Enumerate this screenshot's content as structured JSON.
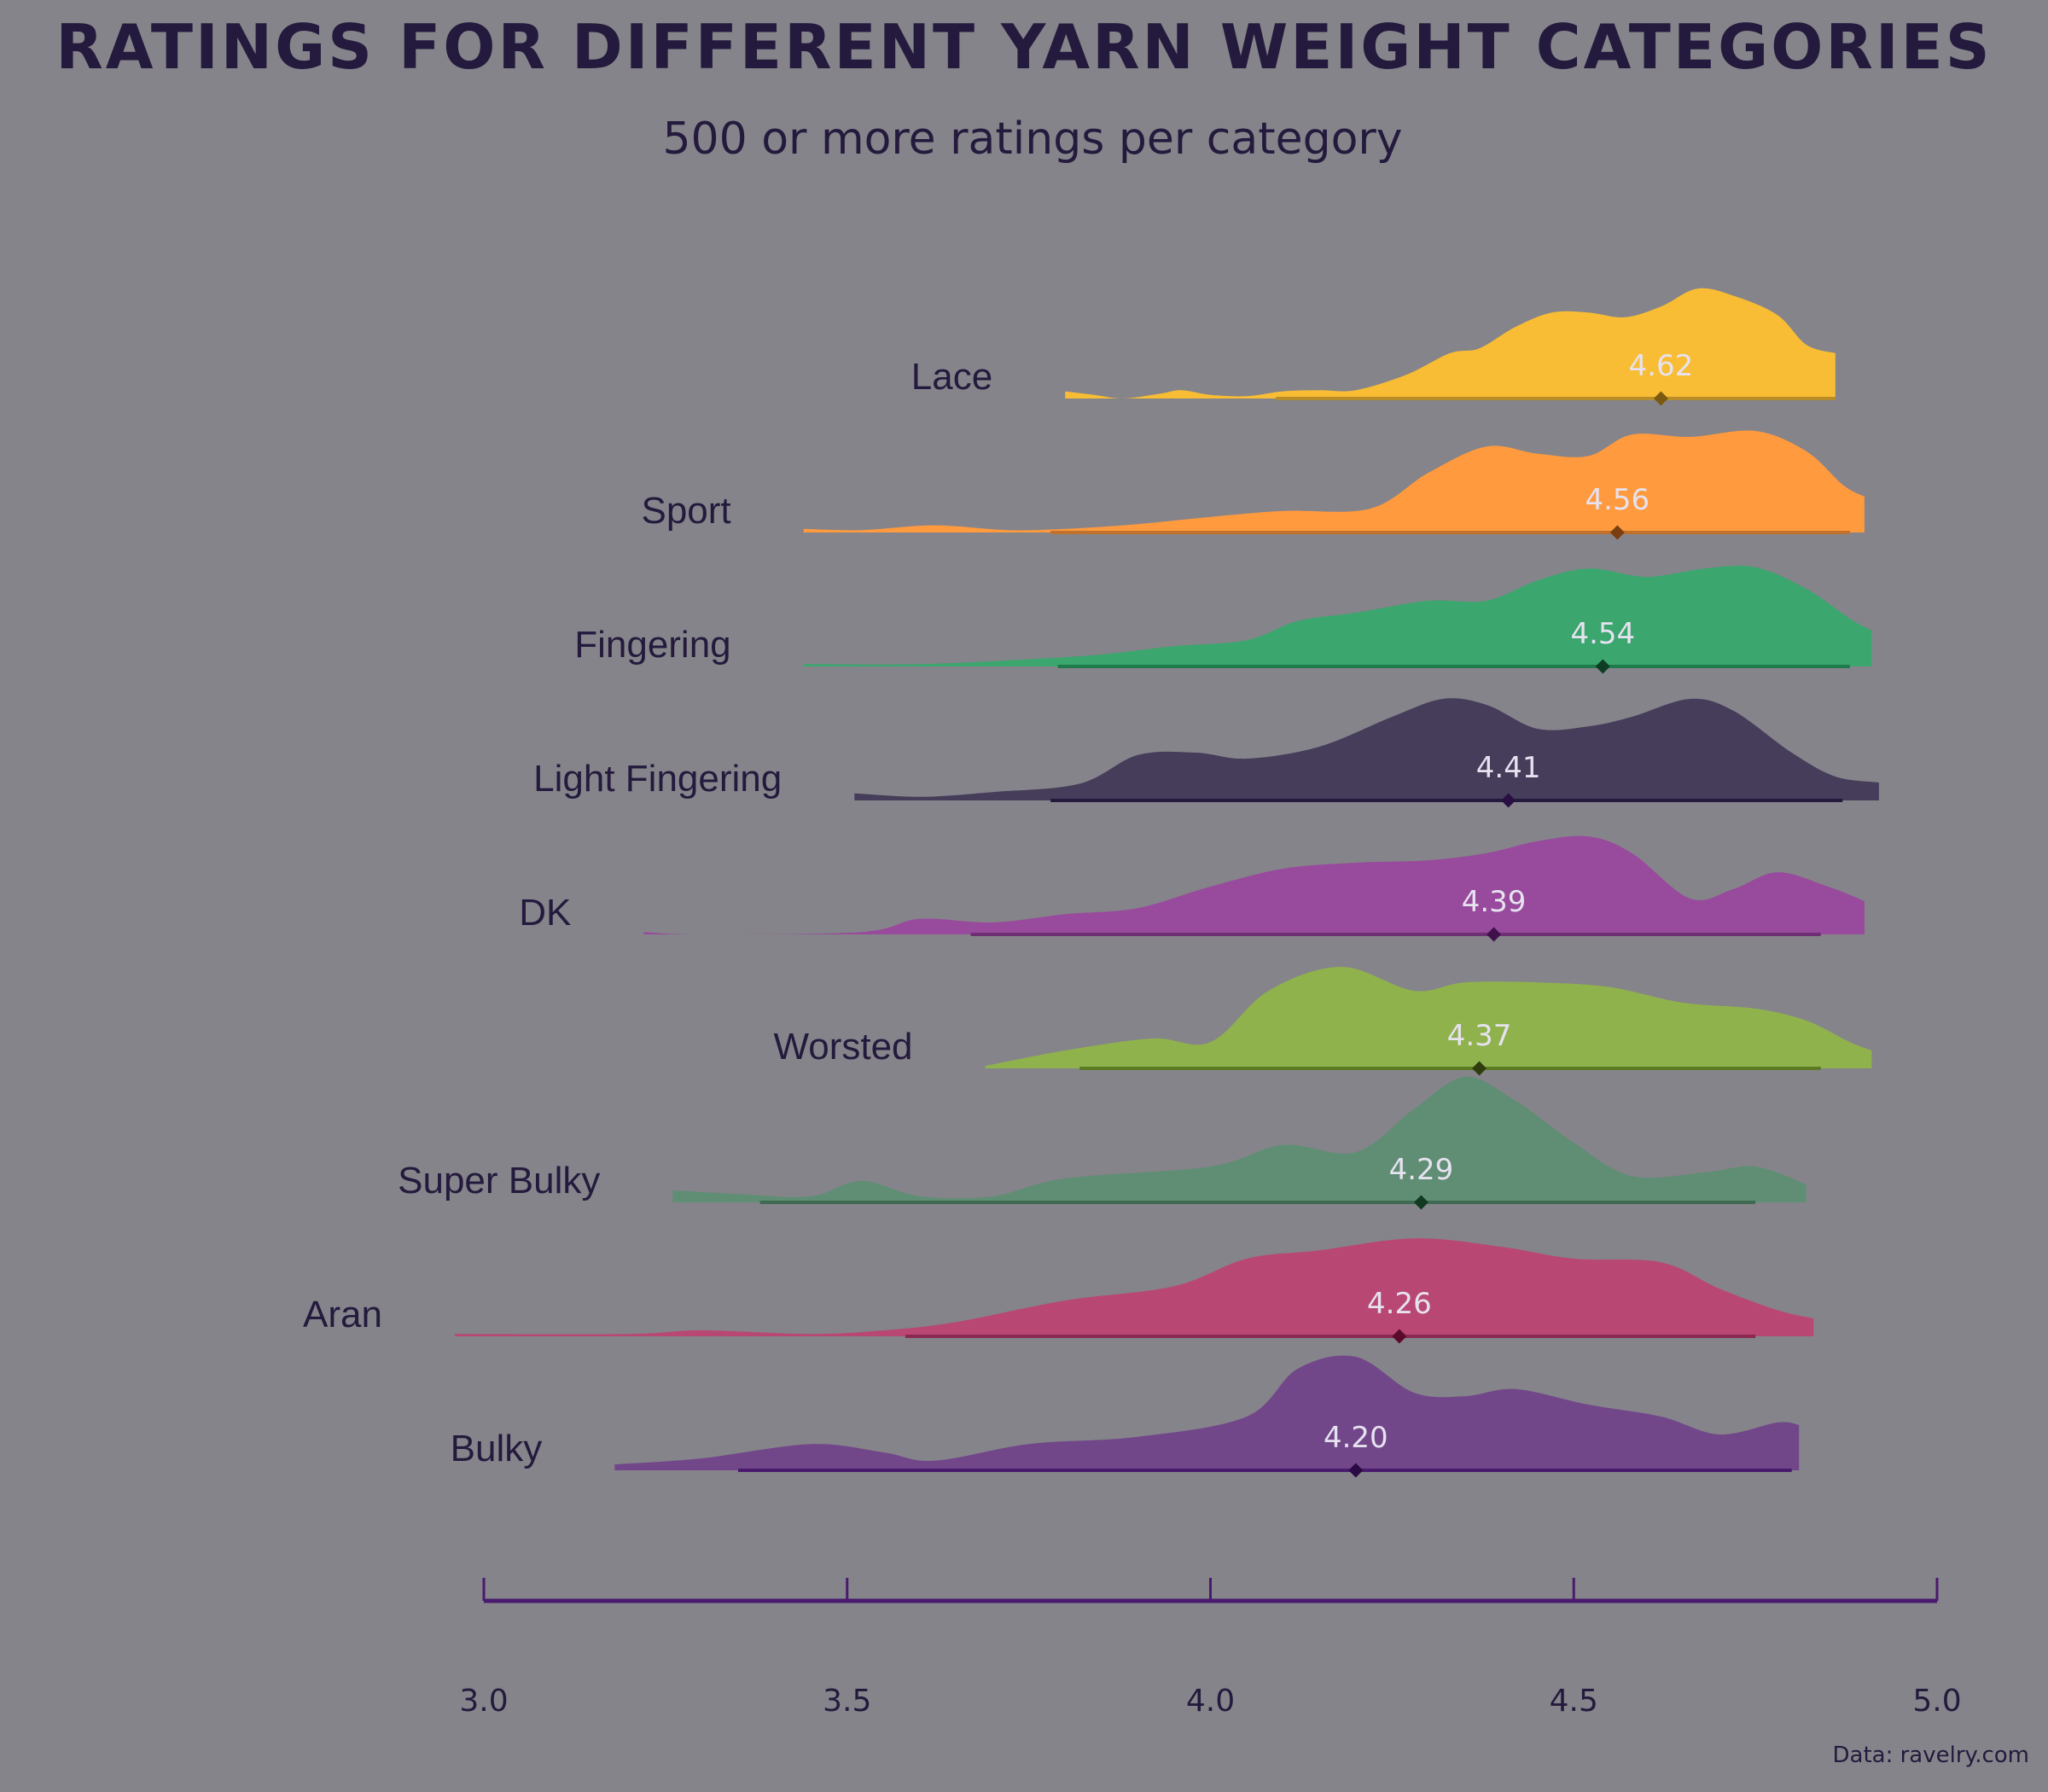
{
  "chart_data": {
    "type": "ridgeline",
    "title": "RATINGS FOR DIFFERENT YARN WEIGHT CATEGORIES",
    "subtitle": "500 or more ratings per category",
    "caption": "Data: ravelry.com",
    "xlim": [
      3.0,
      5.0
    ],
    "x_ticks": [
      "3.0",
      "3.5",
      "4.0",
      "4.5",
      "5.0"
    ],
    "x_tick_values": [
      3.0,
      3.5,
      4.0,
      4.5,
      5.0
    ],
    "grid": false,
    "colors": {
      "background": "#85848a",
      "text": "#241a3d",
      "axis": "#4a1a6e",
      "mean_label": "#e6e2f0"
    },
    "series": [
      {
        "name": "Lace",
        "mean": 4.62,
        "mean_label": "4.62",
        "range": [
          3.8,
          4.86
        ],
        "interval": [
          4.09,
          4.86
        ],
        "fill": "#f8bd34",
        "line": "#b98c2a",
        "dot": "#7a5a10",
        "density": [
          [
            3.8,
            0.06
          ],
          [
            3.84,
            0.03
          ],
          [
            3.88,
            0.0
          ],
          [
            3.93,
            0.04
          ],
          [
            3.96,
            0.07
          ],
          [
            4.0,
            0.03
          ],
          [
            4.05,
            0.02
          ],
          [
            4.1,
            0.06
          ],
          [
            4.15,
            0.07
          ],
          [
            4.2,
            0.07
          ],
          [
            4.27,
            0.2
          ],
          [
            4.33,
            0.38
          ],
          [
            4.37,
            0.42
          ],
          [
            4.42,
            0.6
          ],
          [
            4.47,
            0.72
          ],
          [
            4.52,
            0.72
          ],
          [
            4.57,
            0.68
          ],
          [
            4.62,
            0.77
          ],
          [
            4.67,
            0.92
          ],
          [
            4.72,
            0.86
          ],
          [
            4.78,
            0.7
          ],
          [
            4.82,
            0.45
          ],
          [
            4.86,
            0.38
          ]
        ]
      },
      {
        "name": "Sport",
        "mean": 4.56,
        "mean_label": "4.56",
        "range": [
          3.44,
          4.9
        ],
        "interval": [
          3.78,
          4.88
        ],
        "fill": "#ff9a3e",
        "line": "#c0712b",
        "dot": "#7a3e10",
        "density": [
          [
            3.44,
            0.03
          ],
          [
            3.52,
            0.02
          ],
          [
            3.62,
            0.06
          ],
          [
            3.72,
            0.02
          ],
          [
            3.8,
            0.03
          ],
          [
            3.9,
            0.07
          ],
          [
            4.0,
            0.13
          ],
          [
            4.1,
            0.18
          ],
          [
            4.22,
            0.2
          ],
          [
            4.3,
            0.5
          ],
          [
            4.38,
            0.72
          ],
          [
            4.45,
            0.66
          ],
          [
            4.52,
            0.64
          ],
          [
            4.58,
            0.82
          ],
          [
            4.66,
            0.8
          ],
          [
            4.75,
            0.85
          ],
          [
            4.82,
            0.68
          ],
          [
            4.87,
            0.4
          ],
          [
            4.9,
            0.3
          ]
        ]
      },
      {
        "name": "Fingering",
        "mean": 4.54,
        "mean_label": "4.54",
        "range": [
          3.44,
          4.91
        ],
        "interval": [
          3.79,
          4.88
        ],
        "fill": "#3ba66e",
        "line": "#1f7a4c",
        "dot": "#0e3d24",
        "density": [
          [
            3.44,
            0.02
          ],
          [
            3.6,
            0.02
          ],
          [
            3.75,
            0.06
          ],
          [
            3.85,
            0.1
          ],
          [
            3.95,
            0.17
          ],
          [
            4.05,
            0.22
          ],
          [
            4.12,
            0.38
          ],
          [
            4.2,
            0.45
          ],
          [
            4.3,
            0.55
          ],
          [
            4.38,
            0.55
          ],
          [
            4.45,
            0.72
          ],
          [
            4.52,
            0.82
          ],
          [
            4.6,
            0.75
          ],
          [
            4.68,
            0.82
          ],
          [
            4.75,
            0.83
          ],
          [
            4.82,
            0.65
          ],
          [
            4.88,
            0.4
          ],
          [
            4.91,
            0.3
          ]
        ]
      },
      {
        "name": "Light Fingering",
        "mean": 4.41,
        "mean_label": "4.41",
        "range": [
          3.51,
          4.92
        ],
        "interval": [
          3.78,
          4.87
        ],
        "fill": "#463d5a",
        "line": "#241a3d",
        "dot": "#2a0f45",
        "density": [
          [
            3.51,
            0.06
          ],
          [
            3.6,
            0.03
          ],
          [
            3.7,
            0.07
          ],
          [
            3.82,
            0.14
          ],
          [
            3.9,
            0.38
          ],
          [
            3.98,
            0.4
          ],
          [
            4.05,
            0.35
          ],
          [
            4.15,
            0.45
          ],
          [
            4.25,
            0.7
          ],
          [
            4.32,
            0.85
          ],
          [
            4.38,
            0.8
          ],
          [
            4.45,
            0.6
          ],
          [
            4.52,
            0.62
          ],
          [
            4.58,
            0.7
          ],
          [
            4.66,
            0.85
          ],
          [
            4.72,
            0.75
          ],
          [
            4.8,
            0.4
          ],
          [
            4.86,
            0.2
          ],
          [
            4.92,
            0.15
          ]
        ]
      },
      {
        "name": "DK",
        "mean": 4.39,
        "mean_label": "4.39",
        "range": [
          3.22,
          4.9
        ],
        "interval": [
          3.67,
          4.84
        ],
        "fill": "#984a9c",
        "line": "#6e2f74",
        "dot": "#40104a",
        "density": [
          [
            3.22,
            0.02
          ],
          [
            3.3,
            0.0
          ],
          [
            3.52,
            0.02
          ],
          [
            3.6,
            0.13
          ],
          [
            3.7,
            0.1
          ],
          [
            3.8,
            0.17
          ],
          [
            3.9,
            0.22
          ],
          [
            4.0,
            0.4
          ],
          [
            4.1,
            0.55
          ],
          [
            4.2,
            0.6
          ],
          [
            4.3,
            0.62
          ],
          [
            4.38,
            0.68
          ],
          [
            4.45,
            0.78
          ],
          [
            4.52,
            0.82
          ],
          [
            4.58,
            0.68
          ],
          [
            4.66,
            0.3
          ],
          [
            4.72,
            0.38
          ],
          [
            4.78,
            0.52
          ],
          [
            4.85,
            0.4
          ],
          [
            4.9,
            0.28
          ]
        ]
      },
      {
        "name": "Worsted",
        "mean": 4.37,
        "mean_label": "4.37",
        "range": [
          3.69,
          4.91
        ],
        "interval": [
          3.82,
          4.84
        ],
        "fill": "#8fb24d",
        "line": "#5c7a22",
        "dot": "#2f3d0e",
        "density": [
          [
            3.69,
            0.02
          ],
          [
            3.8,
            0.15
          ],
          [
            3.92,
            0.25
          ],
          [
            4.0,
            0.22
          ],
          [
            4.08,
            0.65
          ],
          [
            4.18,
            0.85
          ],
          [
            4.28,
            0.65
          ],
          [
            4.35,
            0.72
          ],
          [
            4.45,
            0.72
          ],
          [
            4.55,
            0.68
          ],
          [
            4.65,
            0.55
          ],
          [
            4.75,
            0.5
          ],
          [
            4.82,
            0.4
          ],
          [
            4.88,
            0.22
          ],
          [
            4.91,
            0.15
          ]
        ]
      },
      {
        "name": "Super Bulky",
        "mean": 4.29,
        "mean_label": "4.29",
        "range": [
          3.26,
          4.82
        ],
        "interval": [
          3.38,
          4.75
        ],
        "fill": "#5f8e74",
        "line": "#3f6a52",
        "dot": "#123a20",
        "density": [
          [
            3.26,
            0.1
          ],
          [
            3.35,
            0.07
          ],
          [
            3.45,
            0.05
          ],
          [
            3.52,
            0.18
          ],
          [
            3.6,
            0.05
          ],
          [
            3.7,
            0.05
          ],
          [
            3.8,
            0.2
          ],
          [
            4.0,
            0.3
          ],
          [
            4.1,
            0.48
          ],
          [
            4.2,
            0.42
          ],
          [
            4.28,
            0.78
          ],
          [
            4.35,
            1.05
          ],
          [
            4.42,
            0.85
          ],
          [
            4.5,
            0.5
          ],
          [
            4.58,
            0.22
          ],
          [
            4.68,
            0.25
          ],
          [
            4.75,
            0.3
          ],
          [
            4.82,
            0.15
          ]
        ]
      },
      {
        "name": "Aran",
        "mean": 4.26,
        "mean_label": "4.26",
        "range": [
          2.96,
          4.83
        ],
        "interval": [
          3.58,
          4.75
        ],
        "fill": "#b84873",
        "line": "#8a2a54",
        "dot": "#5a0a2a",
        "density": [
          [
            2.96,
            0.02
          ],
          [
            3.2,
            0.02
          ],
          [
            3.3,
            0.05
          ],
          [
            3.45,
            0.02
          ],
          [
            3.55,
            0.05
          ],
          [
            3.65,
            0.12
          ],
          [
            3.8,
            0.3
          ],
          [
            3.95,
            0.42
          ],
          [
            4.05,
            0.65
          ],
          [
            4.15,
            0.72
          ],
          [
            4.28,
            0.82
          ],
          [
            4.4,
            0.75
          ],
          [
            4.5,
            0.65
          ],
          [
            4.62,
            0.62
          ],
          [
            4.7,
            0.4
          ],
          [
            4.78,
            0.22
          ],
          [
            4.83,
            0.15
          ]
        ]
      },
      {
        "name": "Bulky",
        "mean": 4.2,
        "mean_label": "4.20",
        "range": [
          3.18,
          4.81
        ],
        "interval": [
          3.35,
          4.8
        ],
        "fill": "#72478a",
        "line": "#4a1a6e",
        "dot": "#2a0a45",
        "density": [
          [
            3.18,
            0.05
          ],
          [
            3.3,
            0.1
          ],
          [
            3.45,
            0.22
          ],
          [
            3.55,
            0.15
          ],
          [
            3.62,
            0.08
          ],
          [
            3.75,
            0.22
          ],
          [
            3.9,
            0.28
          ],
          [
            4.05,
            0.45
          ],
          [
            4.12,
            0.85
          ],
          [
            4.2,
            0.95
          ],
          [
            4.28,
            0.65
          ],
          [
            4.35,
            0.62
          ],
          [
            4.42,
            0.68
          ],
          [
            4.52,
            0.55
          ],
          [
            4.62,
            0.45
          ],
          [
            4.7,
            0.3
          ],
          [
            4.78,
            0.4
          ],
          [
            4.81,
            0.38
          ]
        ]
      }
    ]
  }
}
